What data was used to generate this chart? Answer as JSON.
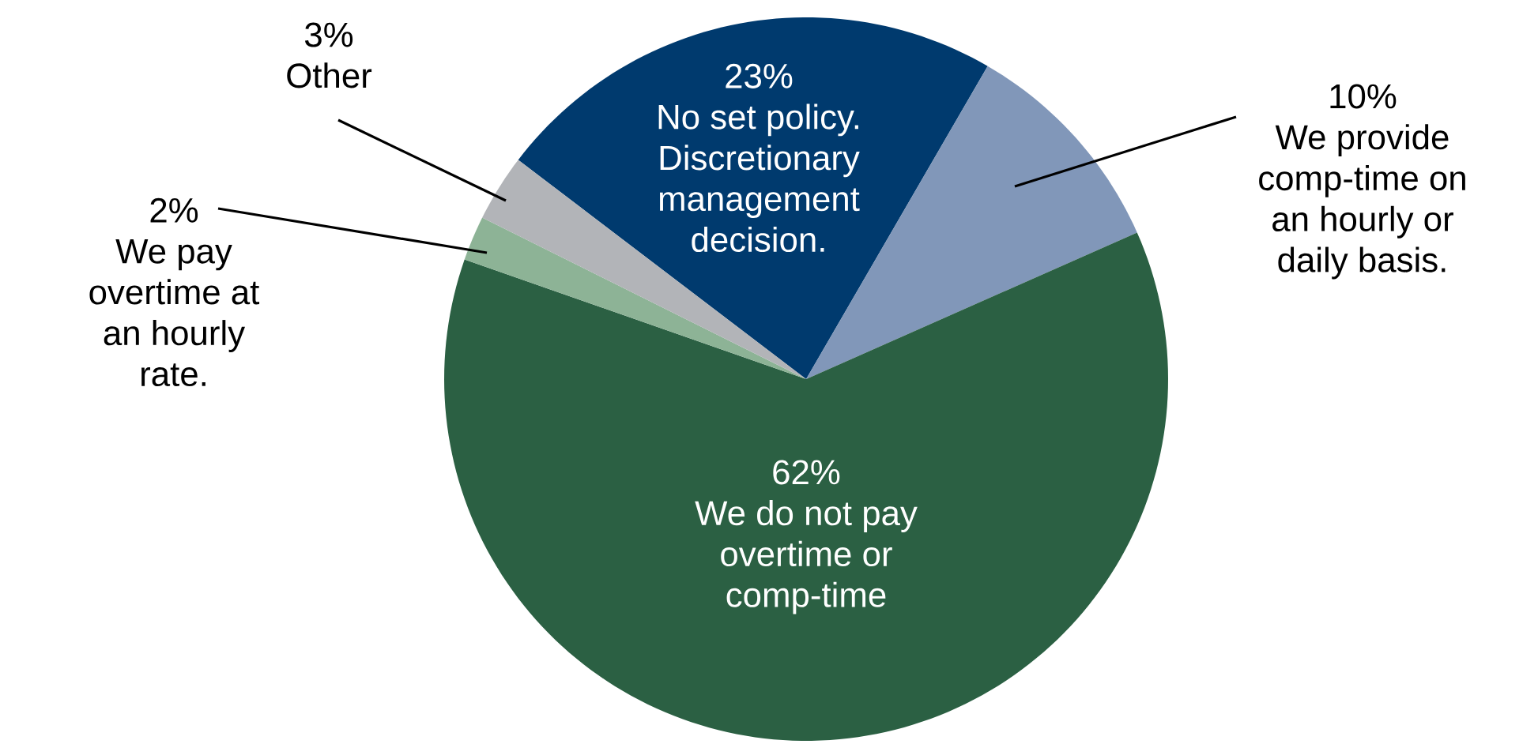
{
  "chart_data": {
    "type": "pie",
    "categories": [
      "No set policy. Discretionary management decision.",
      "We provide comp-time on an hourly or daily basis.",
      "We do not pay overtime or comp-time",
      "We pay overtime at an hourly rate.",
      "Other"
    ],
    "values": [
      23,
      10,
      62,
      2,
      3
    ],
    "value_labels": [
      "23%",
      "10%",
      "62%",
      "2%",
      "3%"
    ],
    "colors": [
      "#003a6e",
      "#8197b9",
      "#2b6043",
      "#8db396",
      "#b2b4b8"
    ]
  }
}
